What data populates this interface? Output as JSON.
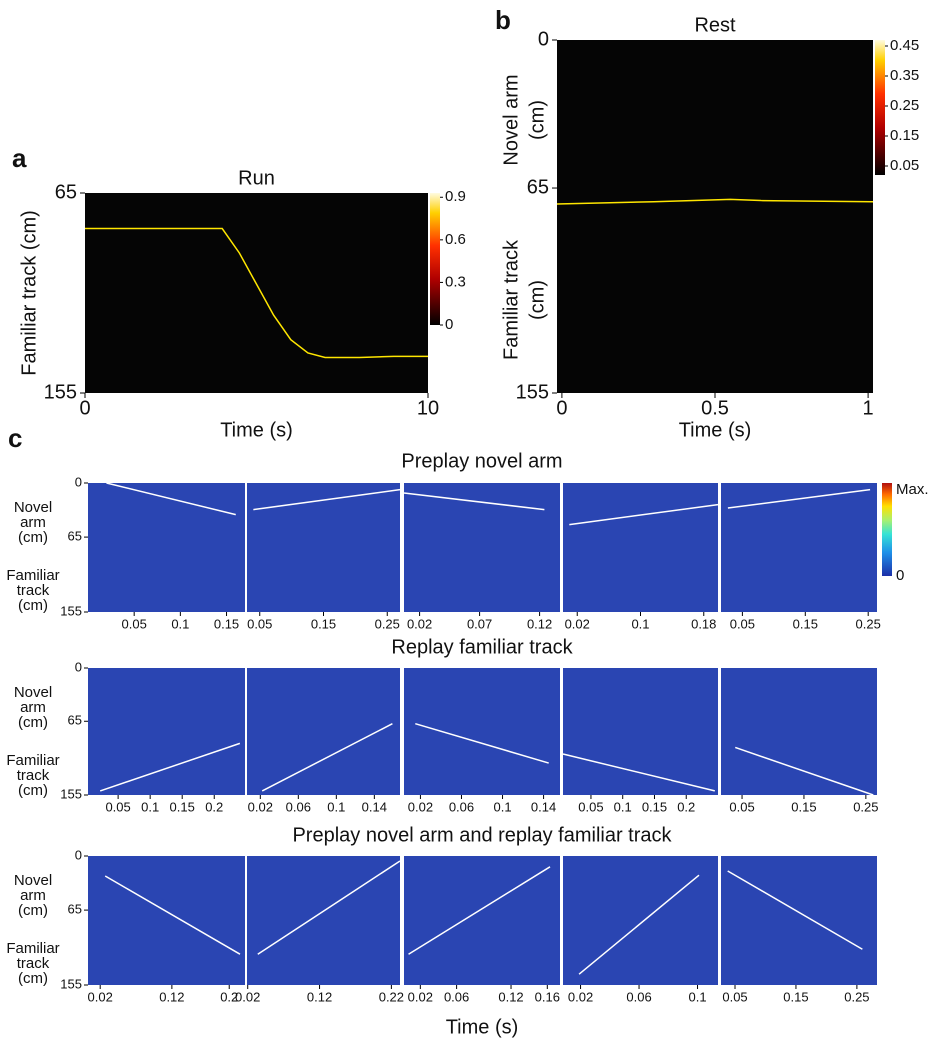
{
  "chart_data": [
    {
      "type": "heatmap",
      "label": "a",
      "title": "Run",
      "xlabel": "Time (s)",
      "ylabel": "Familiar track (cm)",
      "xlim": [
        0,
        10
      ],
      "xticks": [
        0,
        10
      ],
      "ylim": [
        65,
        155
      ],
      "yticks": [
        65,
        155
      ],
      "clim": [
        0,
        0.93
      ],
      "cticks": [
        0.9,
        0.6,
        0.3,
        0
      ],
      "trajectory": {
        "color": "#ffe600",
        "x": [
          0,
          1,
          2,
          3,
          4,
          4.5,
          5,
          5.5,
          6,
          6.5,
          7,
          8,
          9,
          10
        ],
        "y": [
          81,
          81,
          81,
          81,
          81,
          92,
          106,
          120,
          131,
          137,
          139,
          139,
          138.5,
          138.5
        ]
      }
    },
    {
      "type": "heatmap",
      "label": "b",
      "title": "Rest",
      "xlabel": "Time (s)",
      "ylabels": [
        [
          "Novel arm",
          "(cm)"
        ],
        [
          "Familiar track",
          "(cm)"
        ]
      ],
      "xlim": [
        -0.016,
        1.016
      ],
      "xticks": [
        0,
        0.5,
        1
      ],
      "ylim": [
        0,
        155
      ],
      "yticks": [
        0,
        65,
        155
      ],
      "clim": [
        0.02,
        0.47
      ],
      "cticks": [
        0.45,
        0.35,
        0.25,
        0.15,
        0.05
      ],
      "trajectory": {
        "color": "#ffe600",
        "x": [
          -0.016,
          0.3,
          0.55,
          0.65,
          1.016
        ],
        "y": [
          72,
          71,
          70,
          70.5,
          71
        ]
      }
    },
    {
      "type": "decoding",
      "label": "c",
      "xlabel": "Time (s)",
      "ylabels": [
        [
          "Novel",
          "arm",
          "(cm)"
        ],
        [
          "Familiar",
          "track",
          "(cm)"
        ]
      ],
      "ylim": [
        0,
        155
      ],
      "yticks": [
        0,
        65,
        155
      ],
      "colorbar": [
        "Max.",
        "0"
      ],
      "rows": [
        {
          "title": "Preplay novel arm",
          "panels": [
            {
              "xlim": [
                0,
                0.17
              ],
              "xticks": [
                0.05,
                0.1,
                0.15
              ],
              "fit": {
                "x": [
                  0.02,
                  0.16
                ],
                "y": [
                  0,
                  38
                ]
              }
            },
            {
              "xlim": [
                0.03,
                0.27
              ],
              "xticks": [
                0.05,
                0.15,
                0.25
              ],
              "fit": {
                "x": [
                  0.04,
                  0.27
                ],
                "y": [
                  32,
                  8
                ]
              }
            },
            {
              "xlim": [
                0.007,
                0.137
              ],
              "xticks": [
                0.02,
                0.07,
                0.12
              ],
              "fit": {
                "x": [
                  0.007,
                  0.124
                ],
                "y": [
                  12,
                  32
                ]
              }
            },
            {
              "xlim": [
                0.002,
                0.198
              ],
              "xticks": [
                0.02,
                0.1,
                0.18
              ],
              "fit": {
                "x": [
                  0.01,
                  0.198
                ],
                "y": [
                  50,
                  26
                ]
              }
            },
            {
              "xlim": [
                0.016,
                0.264
              ],
              "xticks": [
                0.05,
                0.15,
                0.25
              ],
              "fit": {
                "x": [
                  0.027,
                  0.253
                ],
                "y": [
                  30,
                  8
                ]
              }
            }
          ]
        },
        {
          "title": "Replay familiar track",
          "panels": [
            {
              "xlim": [
                0.003,
                0.248
              ],
              "xticks": [
                0.05,
                0.1,
                0.15,
                0.2
              ],
              "fit": {
                "x": [
                  0.022,
                  0.24
                ],
                "y": [
                  150,
                  92
                ]
              }
            },
            {
              "xlim": [
                0.006,
                0.167
              ],
              "xticks": [
                0.02,
                0.06,
                0.1,
                0.14
              ],
              "fit": {
                "x": [
                  0.022,
                  0.159
                ],
                "y": [
                  150,
                  68
                ]
              }
            },
            {
              "xlim": [
                0.004,
                0.156
              ],
              "xticks": [
                0.02,
                0.06,
                0.1,
                0.14
              ],
              "fit": {
                "x": [
                  0.015,
                  0.145
                ],
                "y": [
                  68,
                  116
                ]
              }
            },
            {
              "xlim": [
                0.006,
                0.25
              ],
              "xticks": [
                0.05,
                0.1,
                0.15,
                0.2
              ],
              "fit": {
                "x": [
                  0.006,
                  0.245
                ],
                "y": [
                  105,
                  150
                ]
              }
            },
            {
              "xlim": [
                0.016,
                0.268
              ],
              "xticks": [
                0.05,
                0.15,
                0.25
              ],
              "fit": {
                "x": [
                  0.039,
                  0.262
                ],
                "y": [
                  97,
                  155
                ]
              }
            }
          ]
        },
        {
          "title": "Preplay novel arm and replay familiar track",
          "panels": [
            {
              "xlim": [
                0.003,
                0.222
              ],
              "xticks": [
                0.02,
                0.12,
                0.2
              ],
              "fit": {
                "x": [
                  0.027,
                  0.215
                ],
                "y": [
                  24,
                  118
                ]
              }
            },
            {
              "xlim": [
                0.019,
                0.232
              ],
              "xticks": [
                0.02,
                0.12,
                0.22
              ],
              "fit": {
                "x": [
                  0.034,
                  0.232
                ],
                "y": [
                  118,
                  6
                ]
              }
            },
            {
              "xlim": [
                0.002,
                0.174
              ],
              "xticks": [
                0.02,
                0.06,
                0.12,
                0.16
              ],
              "fit": {
                "x": [
                  0.007,
                  0.163
                ],
                "y": [
                  118,
                  13
                ]
              }
            },
            {
              "xlim": [
                0.008,
                0.114
              ],
              "xticks": [
                0.02,
                0.06,
                0.1
              ],
              "fit": {
                "x": [
                  0.019,
                  0.101
                ],
                "y": [
                  142,
                  23
                ]
              }
            },
            {
              "xlim": [
                0.027,
                0.283
              ],
              "xticks": [
                0.05,
                0.15,
                0.25
              ],
              "fit": {
                "x": [
                  0.038,
                  0.259
                ],
                "y": [
                  18,
                  112
                ]
              }
            }
          ]
        }
      ]
    }
  ]
}
